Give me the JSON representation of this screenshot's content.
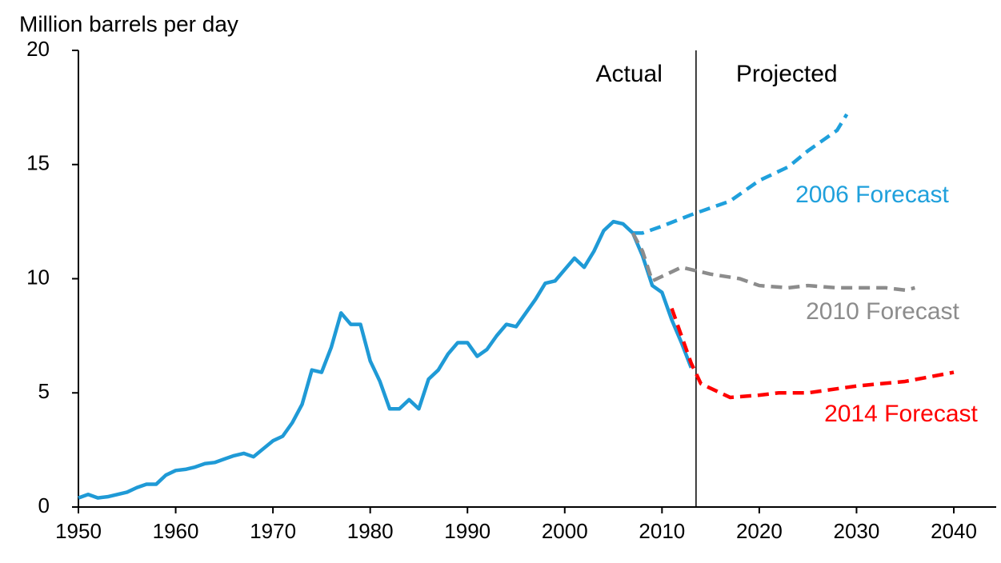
{
  "chart_data": {
    "type": "line",
    "y_label": "Million barrels per day",
    "annotations": [
      "Actual",
      "Projected"
    ],
    "divider_x": 2013.5,
    "xlim": [
      1950,
      2040
    ],
    "xticks": [
      1950,
      1960,
      1970,
      1980,
      1990,
      2000,
      2010,
      2020,
      2030,
      2040
    ],
    "ylim": [
      0,
      20
    ],
    "yticks": [
      0,
      5,
      10,
      15,
      20
    ],
    "series": [
      {
        "color": "#1f9ad6",
        "dashed": false,
        "x": [
          1950,
          1951,
          1952,
          1953,
          1954,
          1955,
          1956,
          1957,
          1958,
          1959,
          1960,
          1961,
          1962,
          1963,
          1964,
          1965,
          1966,
          1967,
          1968,
          1969,
          1970,
          1971,
          1972,
          1973,
          1974,
          1975,
          1976,
          1977,
          1978,
          1979,
          1980,
          1981,
          1982,
          1983,
          1984,
          1985,
          1986,
          1987,
          1988,
          1989,
          1990,
          1991,
          1992,
          1993,
          1994,
          1995,
          1996,
          1997,
          1998,
          1999,
          2000,
          2001,
          2002,
          2003,
          2004,
          2005,
          2006,
          2007,
          2008,
          2009,
          2010,
          2011,
          2012,
          2013
        ],
        "values": [
          0.4,
          0.55,
          0.4,
          0.45,
          0.55,
          0.65,
          0.85,
          1.0,
          1.0,
          1.4,
          1.6,
          1.65,
          1.75,
          1.9,
          1.95,
          2.1,
          2.25,
          2.35,
          2.2,
          2.55,
          2.9,
          3.1,
          3.7,
          4.5,
          6.0,
          5.9,
          7.0,
          8.5,
          8.0,
          8.0,
          6.4,
          5.5,
          4.3,
          4.3,
          4.7,
          4.3,
          5.6,
          6.0,
          6.7,
          7.2,
          7.2,
          6.6,
          6.9,
          7.5,
          8.0,
          7.9,
          8.5,
          9.1,
          9.8,
          9.9,
          10.4,
          10.9,
          10.5,
          11.2,
          12.1,
          12.5,
          12.4,
          12.0,
          11.0,
          9.7,
          9.4,
          8.2,
          7.2,
          6.1
        ]
      },
      {
        "name": "2006 Forecast",
        "color": "#1fa0dc",
        "dashed": true,
        "x": [
          2007,
          2008,
          2010,
          2013,
          2015,
          2017,
          2020,
          2023,
          2025,
          2028,
          2029
        ],
        "values": [
          12.0,
          12.0,
          12.3,
          12.8,
          13.1,
          13.4,
          14.3,
          14.9,
          15.6,
          16.5,
          17.2
        ]
      },
      {
        "name": "2010 Forecast",
        "color": "#8c8c8c",
        "dashed": true,
        "x": [
          2007,
          2008,
          2009,
          2010,
          2012,
          2015,
          2018,
          2020,
          2023,
          2025,
          2028,
          2030,
          2033,
          2035,
          2036
        ],
        "values": [
          12.0,
          11.2,
          9.9,
          10.1,
          10.5,
          10.2,
          10.0,
          9.7,
          9.6,
          9.7,
          9.6,
          9.6,
          9.6,
          9.5,
          9.6
        ]
      },
      {
        "name": "2014 Forecast",
        "color": "#ff0000",
        "dashed": true,
        "x": [
          2011,
          2012,
          2013,
          2014,
          2015,
          2017,
          2020,
          2022,
          2025,
          2030,
          2035,
          2040
        ],
        "values": [
          8.7,
          7.5,
          6.3,
          5.4,
          5.2,
          4.8,
          4.9,
          5.0,
          5.0,
          5.3,
          5.5,
          5.9
        ]
      }
    ]
  }
}
